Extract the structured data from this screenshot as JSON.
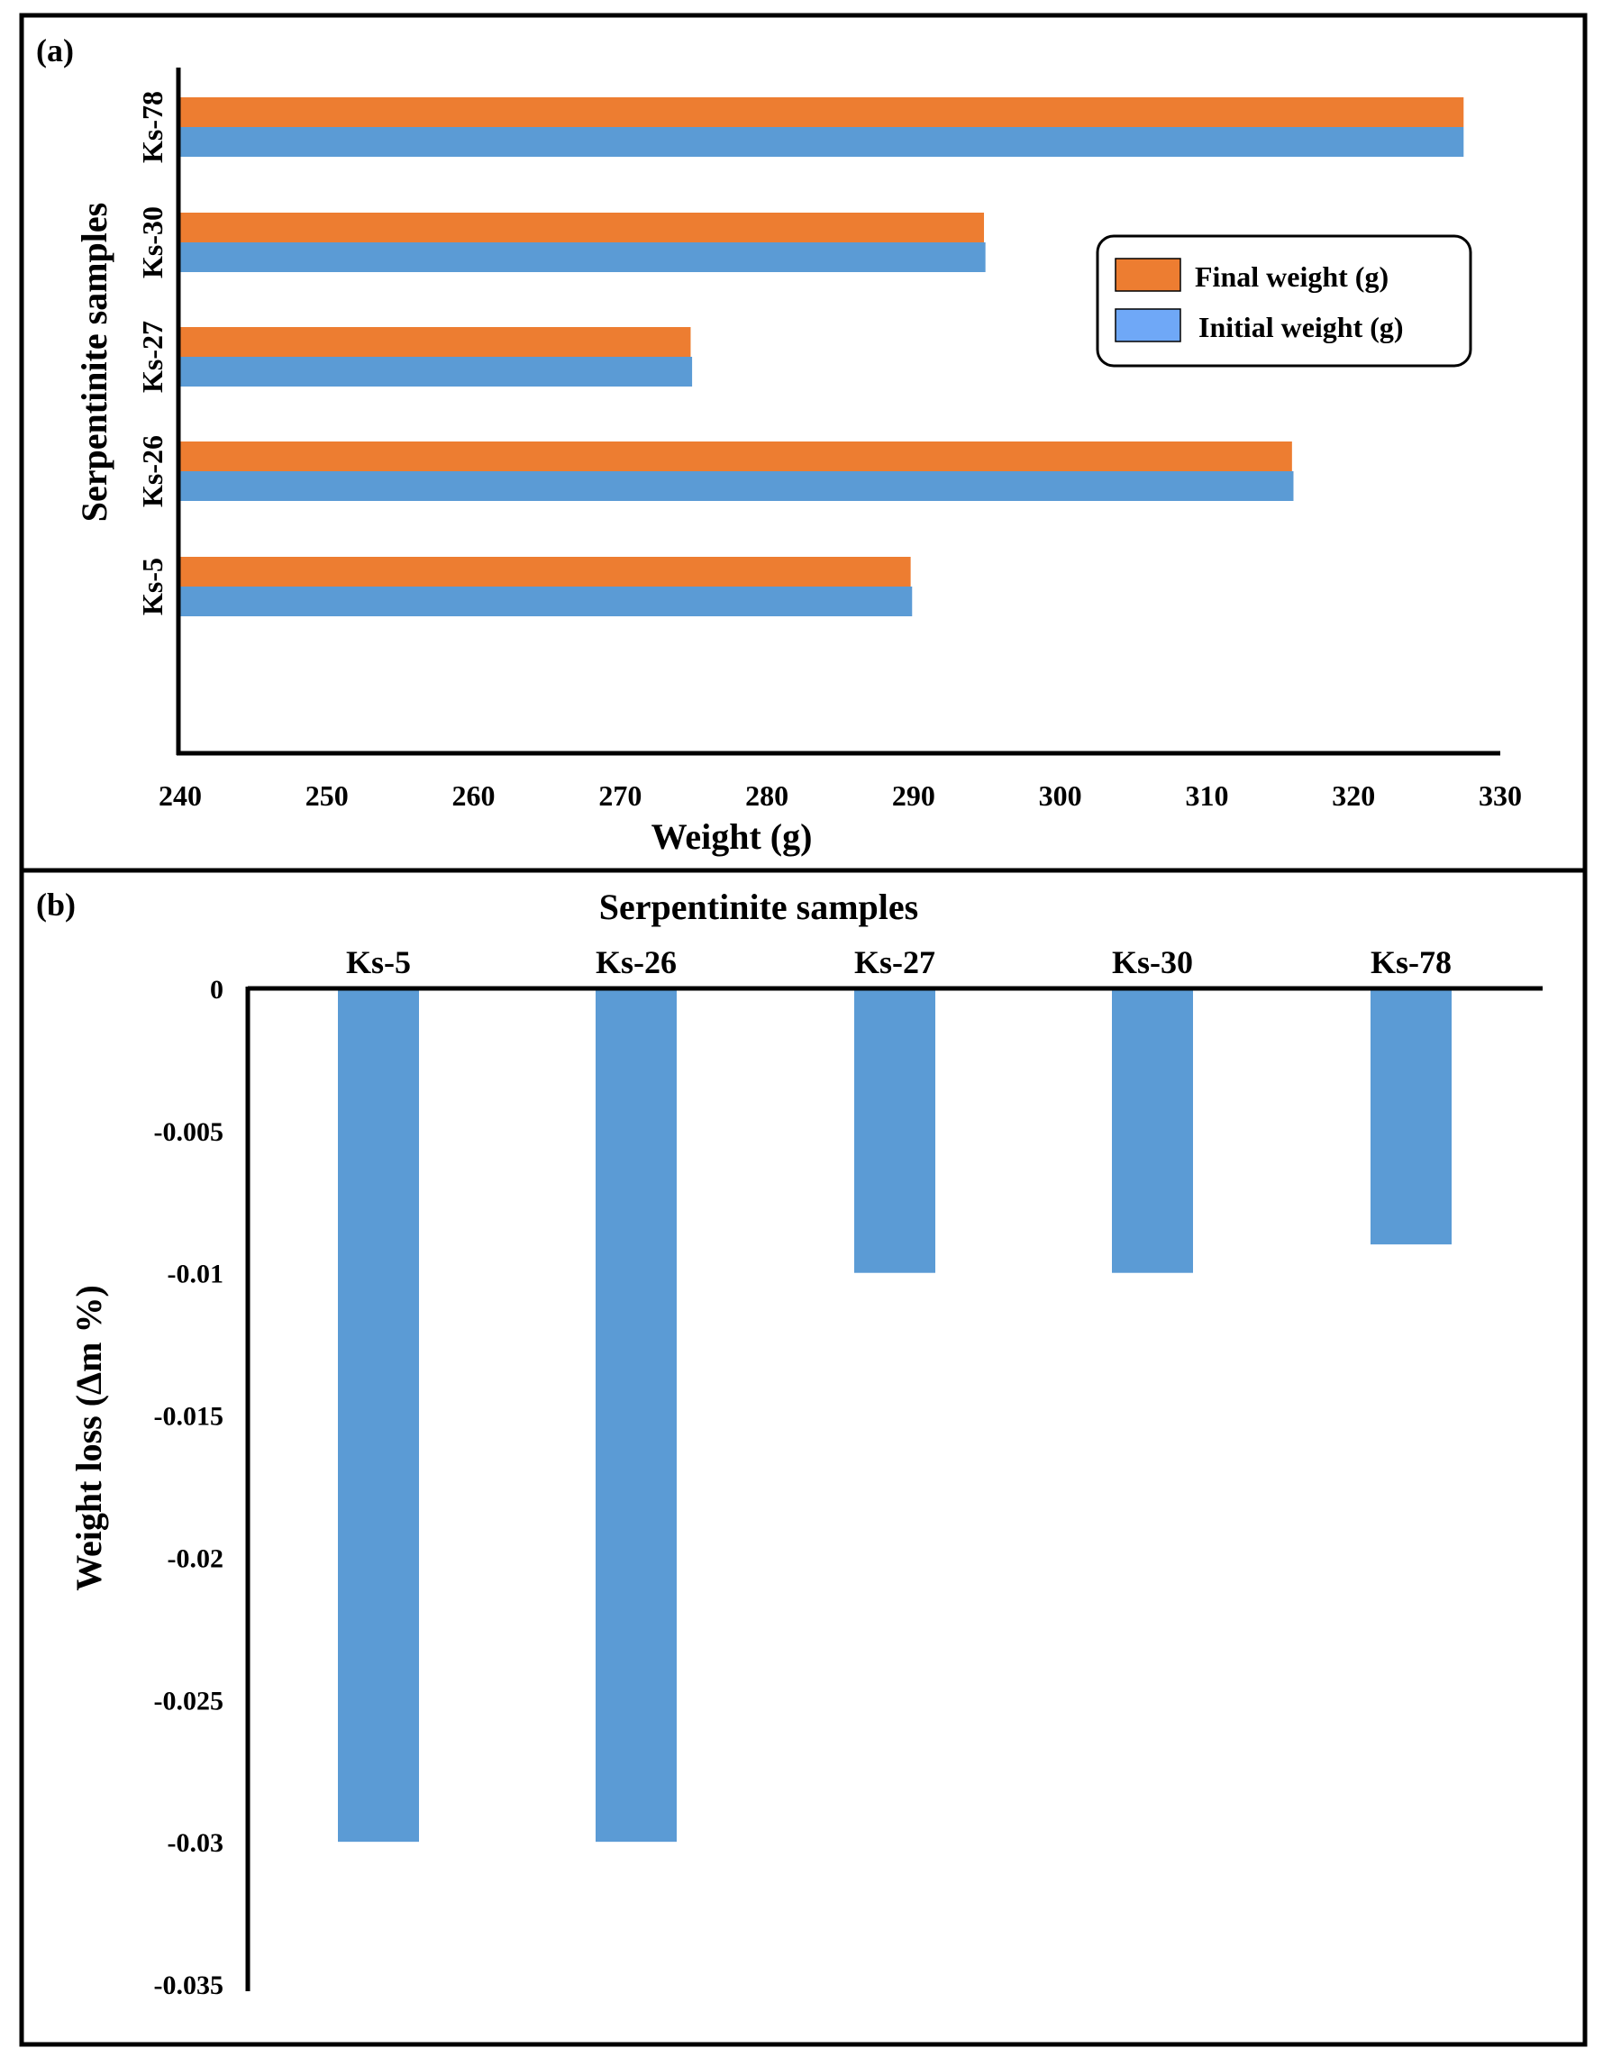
{
  "chart_data": [
    {
      "panel_label": "(a)",
      "type": "bar",
      "orientation": "horizontal",
      "title": "",
      "xlabel": "Weight (g)",
      "ylabel": "Serpentinite samples",
      "xlim": [
        240,
        330
      ],
      "x_ticks": [
        "240",
        "250",
        "260",
        "270",
        "280",
        "290",
        "300",
        "310",
        "320",
        "330"
      ],
      "categories": [
        "Ks-5",
        "Ks-26",
        "Ks-27",
        "Ks-30",
        "Ks-78"
      ],
      "series": [
        {
          "name": "Final weight (g)",
          "color": "#ED7D31",
          "values": [
            289.8,
            315.8,
            274.8,
            294.8,
            327.5
          ]
        },
        {
          "name": "Initial weight (g)",
          "color": "#5B9BD5",
          "values": [
            289.9,
            315.9,
            274.9,
            294.9,
            327.5
          ]
        }
      ],
      "legend": {
        "position": "top-right",
        "entries": [
          "Final weight (g)",
          "Initial weight (g)"
        ],
        "swatch_colors": [
          "#ED7D31",
          "#6FA8F7"
        ]
      },
      "grid": false
    },
    {
      "panel_label": "(b)",
      "type": "bar",
      "orientation": "vertical",
      "title": "Serpentinite samples",
      "xlabel": "",
      "ylabel": "Weight loss (Δm %)",
      "ylim": [
        -0.035,
        0
      ],
      "y_ticks": [
        "0",
        "-0.005",
        "-0.01",
        "-0.015",
        "-0.02",
        "-0.025",
        "-0.03",
        "-0.035"
      ],
      "categories": [
        "Ks-5",
        "Ks-26",
        "Ks-27",
        "Ks-30",
        "Ks-78"
      ],
      "series": [
        {
          "name": "Weight loss",
          "color": "#5B9BD5",
          "values": [
            -0.03,
            -0.03,
            -0.01,
            -0.01,
            -0.009
          ]
        }
      ],
      "grid": false
    }
  ]
}
